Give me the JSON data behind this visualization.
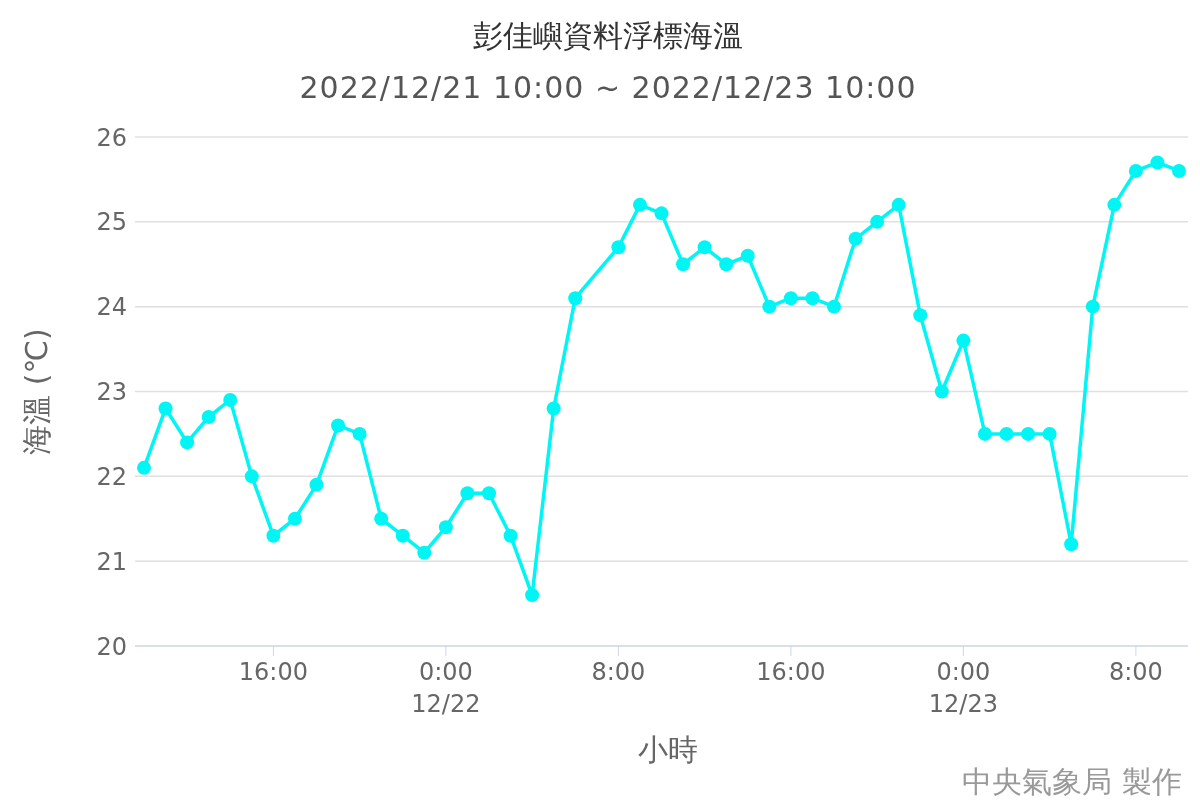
{
  "chart_data": {
    "type": "line",
    "title": "彭佳嶼資料浮標海溫",
    "subtitle": "2022/12/21 10:00 ~ 2022/12/23 10:00",
    "xlabel": "小時",
    "ylabel": "海溫 (℃)",
    "annotations": [
      "中央氣象局 製作"
    ],
    "x": [
      "2022-12-21T10:00",
      "2022-12-21T11:00",
      "2022-12-21T12:00",
      "2022-12-21T13:00",
      "2022-12-21T14:00",
      "2022-12-21T15:00",
      "2022-12-21T16:00",
      "2022-12-21T17:00",
      "2022-12-21T18:00",
      "2022-12-21T19:00",
      "2022-12-21T20:00",
      "2022-12-21T21:00",
      "2022-12-21T22:00",
      "2022-12-21T23:00",
      "2022-12-22T00:00",
      "2022-12-22T01:00",
      "2022-12-22T02:00",
      "2022-12-22T03:00",
      "2022-12-22T04:00",
      "2022-12-22T05:00",
      "2022-12-22T06:00",
      "2022-12-22T08:00",
      "2022-12-22T09:00",
      "2022-12-22T10:00",
      "2022-12-22T11:00",
      "2022-12-22T12:00",
      "2022-12-22T13:00",
      "2022-12-22T14:00",
      "2022-12-22T15:00",
      "2022-12-22T16:00",
      "2022-12-22T17:00",
      "2022-12-22T18:00",
      "2022-12-22T19:00",
      "2022-12-22T20:00",
      "2022-12-22T21:00",
      "2022-12-22T22:00",
      "2022-12-22T23:00",
      "2022-12-23T00:00",
      "2022-12-23T01:00",
      "2022-12-23T02:00",
      "2022-12-23T03:00",
      "2022-12-23T04:00",
      "2022-12-23T05:00",
      "2022-12-23T06:00",
      "2022-12-23T07:00",
      "2022-12-23T08:00",
      "2022-12-23T09:00",
      "2022-12-23T10:00"
    ],
    "series": [
      {
        "color": "#00f5f5",
        "values": [
          22.1,
          22.8,
          22.4,
          22.7,
          22.9,
          22.0,
          21.3,
          21.5,
          21.9,
          22.6,
          22.5,
          21.5,
          21.3,
          21.1,
          21.4,
          21.8,
          21.8,
          21.3,
          20.6,
          22.8,
          24.1,
          24.7,
          25.2,
          25.1,
          24.5,
          24.7,
          24.5,
          24.6,
          24.0,
          24.1,
          24.1,
          24.0,
          24.8,
          25.0,
          25.2,
          23.9,
          23.0,
          23.6,
          22.5,
          22.5,
          22.5,
          22.5,
          21.2,
          24.0,
          25.2,
          25.6,
          25.7,
          25.6
        ]
      }
    ],
    "xlim": [
      "2022-12-21T09:35",
      "2022-12-23T10:25"
    ],
    "xticks": [
      {
        "value": "2022-12-21T16:00",
        "label": "16:00"
      },
      {
        "value": "2022-12-22T00:00",
        "label": "0:00\n12/22"
      },
      {
        "value": "2022-12-22T08:00",
        "label": "8:00"
      },
      {
        "value": "2022-12-22T16:00",
        "label": "16:00"
      },
      {
        "value": "2022-12-23T00:00",
        "label": "0:00\n12/23"
      },
      {
        "value": "2022-12-23T08:00",
        "label": "8:00"
      }
    ],
    "ylim": [
      20,
      26
    ],
    "yticks": [
      20,
      21,
      22,
      23,
      24,
      25,
      26
    ],
    "grid": "y",
    "marker": "circle",
    "line_style": "solid"
  }
}
